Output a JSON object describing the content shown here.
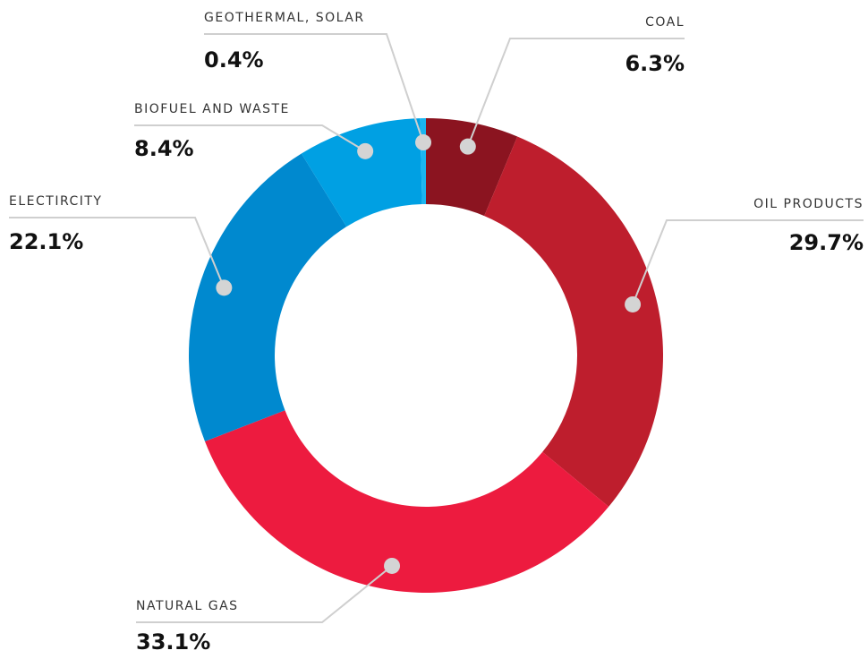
{
  "chart_data": {
    "type": "donut",
    "categories": [
      "COAL",
      "OIL PRODUCTS",
      "NATURAL GAS",
      "ELECTIRCITY",
      "BIOFUEL AND WASTE",
      "GEOTHERMAL, SOLAR"
    ],
    "values": [
      6.3,
      29.7,
      33.1,
      22.1,
      8.4,
      0.4
    ],
    "value_labels": [
      "6.3%",
      "29.7%",
      "33.1%",
      "22.1%",
      "8.4%",
      "0.4%"
    ],
    "colors": [
      "#8b1420",
      "#be1e2d",
      "#ed1b3f",
      "#0089cf",
      "#00a0e3",
      "#1bb5f0"
    ]
  }
}
